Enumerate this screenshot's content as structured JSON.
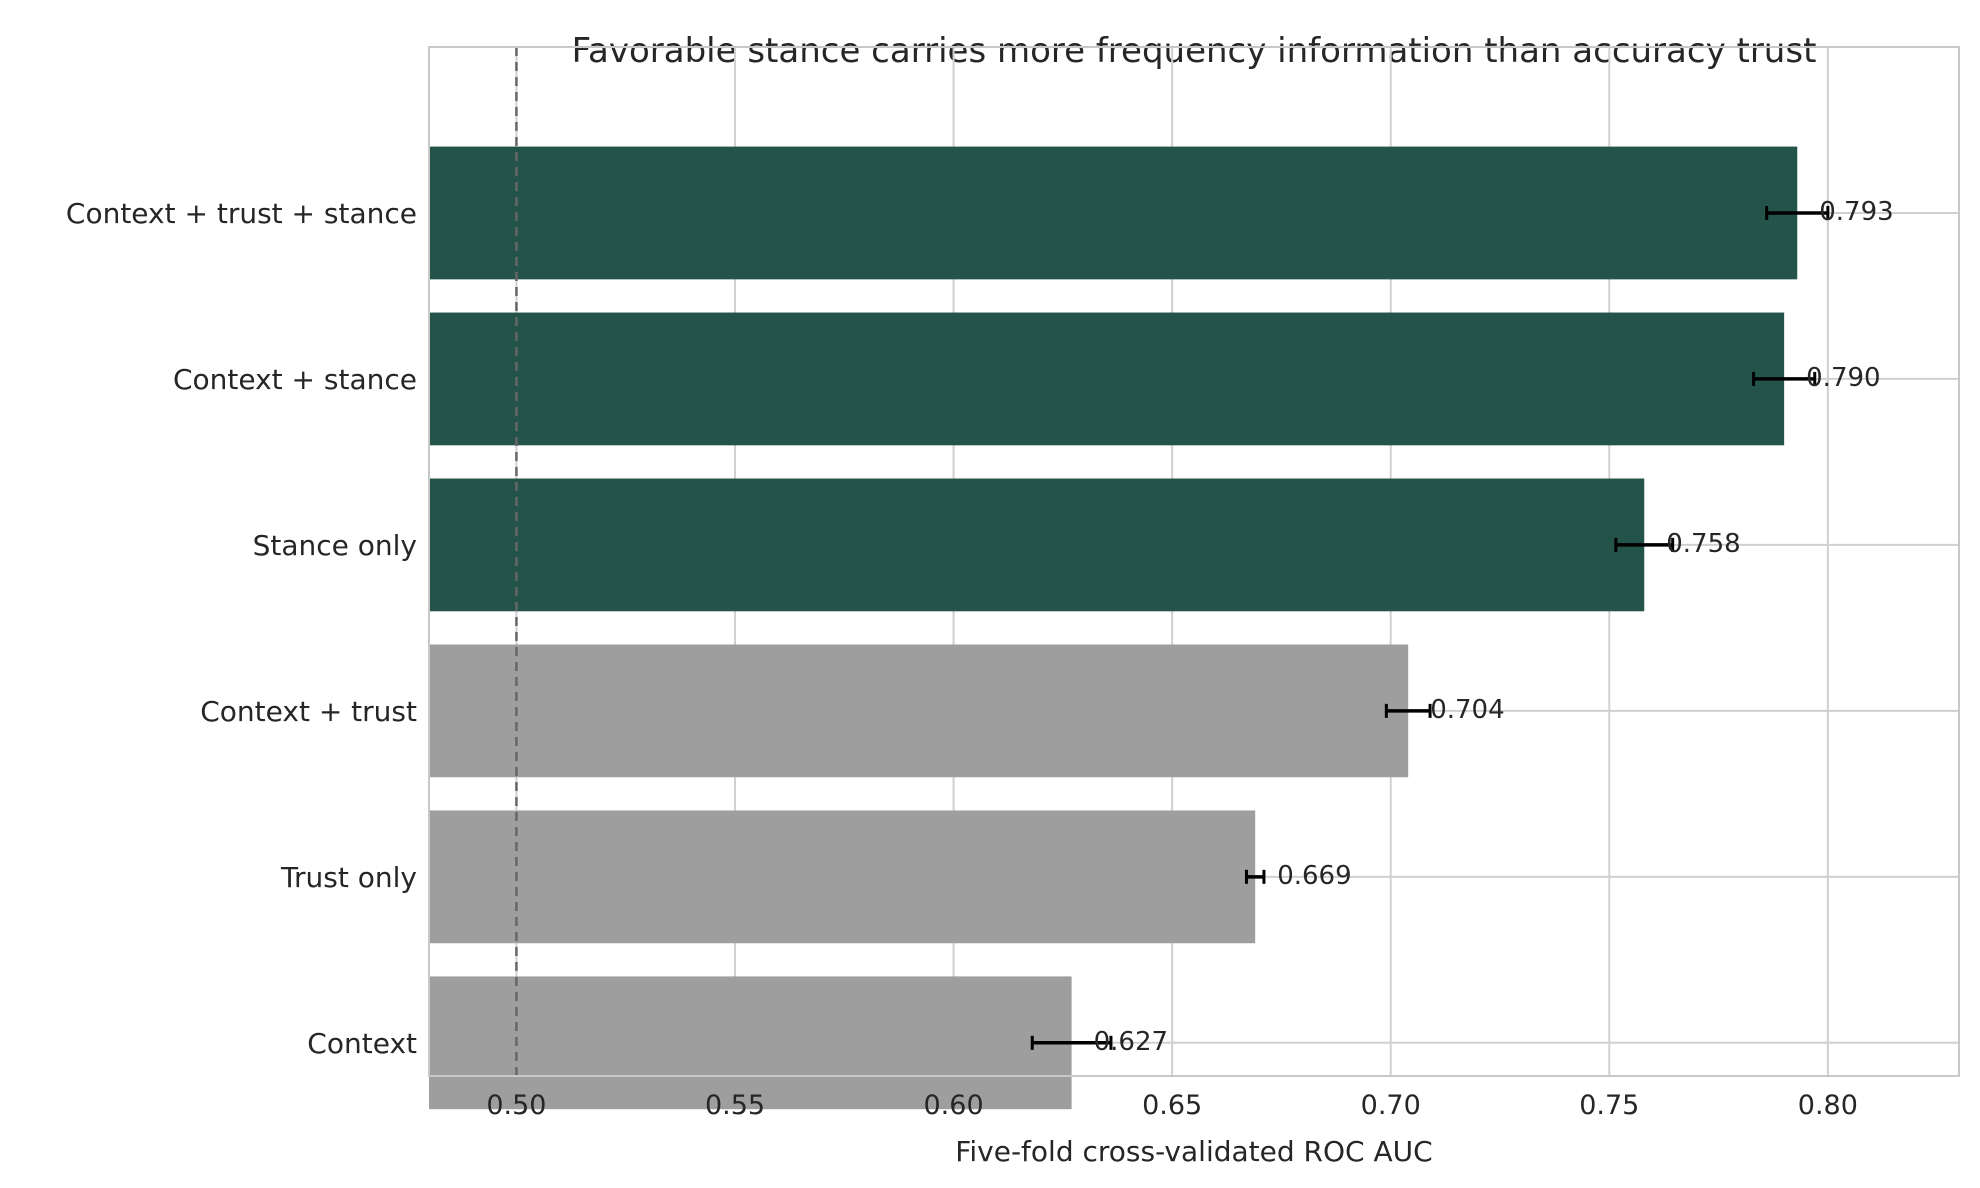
{
  "chart_data": {
    "type": "bar",
    "orientation": "horizontal",
    "title": "Favorable stance carries more frequency information than accuracy trust",
    "xlabel": "Five-fold cross-validated ROC AUC",
    "ylabel": "",
    "xlim": [
      0.48,
      0.83
    ],
    "xticks": [
      0.5,
      0.55,
      0.6,
      0.65,
      0.7,
      0.75,
      0.8
    ],
    "xtick_labels": [
      "0.50",
      "0.55",
      "0.60",
      "0.65",
      "0.70",
      "0.75",
      "0.80"
    ],
    "grid": true,
    "reference_line": {
      "x": 0.5,
      "style": "dashed"
    },
    "categories": [
      "Context + trust + stance",
      "Context + stance",
      "Stance only",
      "Context + trust",
      "Trust only",
      "Context"
    ],
    "values": [
      0.793,
      0.79,
      0.758,
      0.704,
      0.669,
      0.627
    ],
    "value_labels": [
      "0.793",
      "0.790",
      "0.758",
      "0.704",
      "0.669",
      "0.627"
    ],
    "errors": [
      0.007,
      0.007,
      0.0065,
      0.005,
      0.002,
      0.009
    ],
    "bar_colors": [
      "#24534a",
      "#24534a",
      "#24534a",
      "#9e9e9e",
      "#9e9e9e",
      "#9e9e9e"
    ],
    "colors": {
      "stance": "#24534a",
      "baseline": "#9e9e9e",
      "grid": "#d0d0d0",
      "refline": "#666666"
    }
  }
}
